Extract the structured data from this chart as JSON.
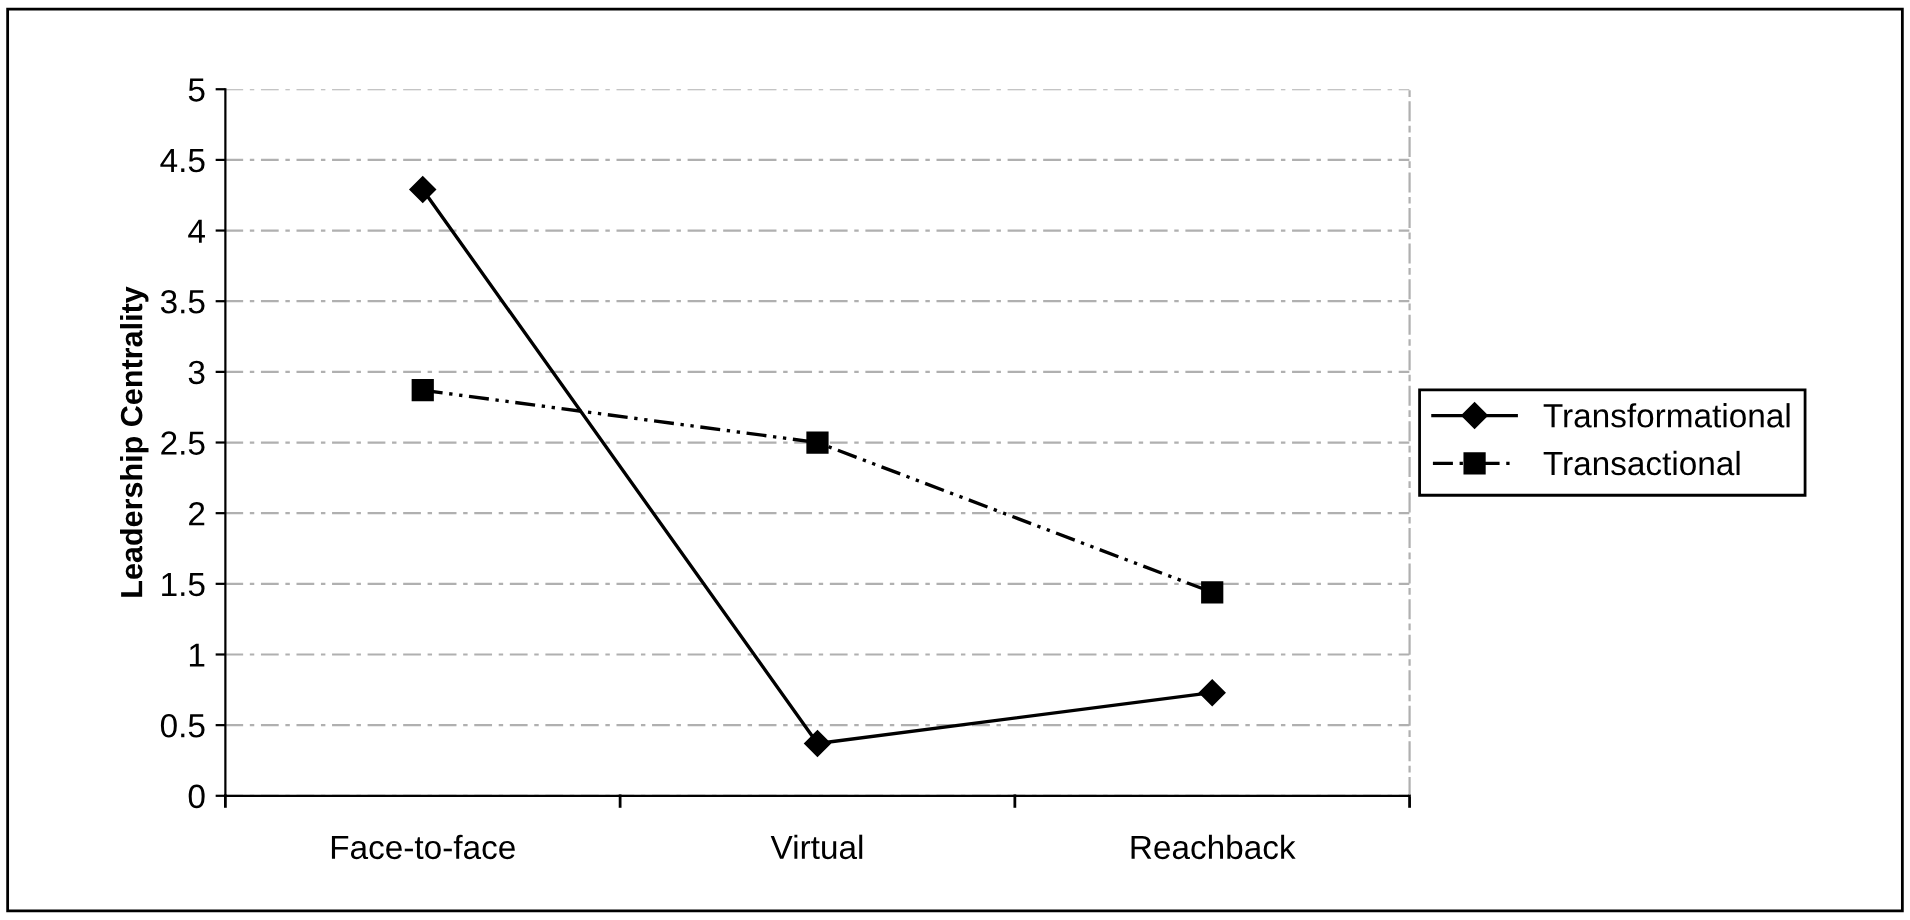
{
  "chart_data": {
    "type": "line",
    "ylabel": "Leadership Centrality",
    "categories": [
      "Face-to-face",
      "Virtual",
      "Reachback"
    ],
    "series": [
      {
        "name": "Transformational",
        "color": "#000000",
        "values": [
          4.29,
          0.37,
          0.73
        ],
        "marker": "diamond",
        "line_style": "solid"
      },
      {
        "name": "Transactional",
        "color": "#000000",
        "values": [
          2.87,
          2.5,
          1.44
        ],
        "marker": "square",
        "line_style": "dashdot"
      }
    ],
    "ylim": [
      0,
      5
    ],
    "yticks": [
      0,
      0.5,
      1,
      1.5,
      2,
      2.5,
      3,
      3.5,
      4,
      4.5,
      5
    ],
    "grid": "y",
    "legend": "right"
  }
}
